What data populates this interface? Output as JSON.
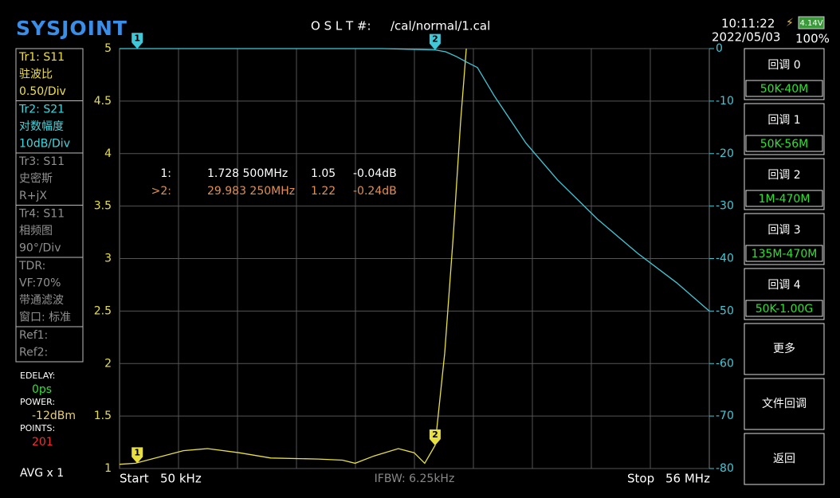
{
  "header": {
    "logo": "SYSJOINT",
    "cal_label": "O S L T #:",
    "cal_file": "/cal/normal/1.cal",
    "time": "10:11:22",
    "battery_voltage": "4.14V",
    "date": "2022/05/03",
    "battery_percent": "100%"
  },
  "traces": [
    {
      "lines": [
        "Tr1:  S11",
        "驻波比",
        "0.50/Div"
      ],
      "color": "#f0e040"
    },
    {
      "lines": [
        "Tr2:  S21",
        "对数幅度",
        "10dB/Div"
      ],
      "color": "#40d8e0"
    },
    {
      "lines": [
        "Tr3:  S11",
        "史密斯",
        "R+jX"
      ],
      "color": "#909090"
    },
    {
      "lines": [
        "Tr4:  S11",
        "相频图",
        "90°/Div"
      ],
      "color": "#909090"
    },
    {
      "lines": [
        "TDR:",
        "VF:70%",
        "带通滤波",
        "窗口: 标准"
      ],
      "color": "#909090"
    },
    {
      "lines": [
        "Ref1:",
        "Ref2:"
      ],
      "color": "#909090"
    }
  ],
  "status": [
    {
      "label": "EDELAY:",
      "value": "0ps",
      "color": "#30e030"
    },
    {
      "label": "POWER:",
      "value": "-12dBm",
      "color": "#e8d070"
    },
    {
      "label": "POINTS:",
      "value": "201",
      "color": "#f03030"
    }
  ],
  "avg": "AVG x 1",
  "buttons": [
    {
      "label": "回调 0",
      "sub": "50K-40M"
    },
    {
      "label": "回调 1",
      "sub": "50K-56M"
    },
    {
      "label": "回调 2",
      "sub": "1M-470M"
    },
    {
      "label": "回调 3",
      "sub": "135M-470M"
    },
    {
      "label": "回调 4",
      "sub": "50K-1.00G"
    },
    {
      "label": "更多"
    },
    {
      "label": "文件回调"
    },
    {
      "label": "返回"
    }
  ],
  "chart_data": {
    "type": "line",
    "xlim": [
      0.05,
      56
    ],
    "ylim": [
      1,
      5
    ],
    "yticks": [
      1,
      1.5,
      2,
      2.5,
      3,
      3.5,
      4,
      4.5,
      5
    ],
    "y2lim": [
      -80,
      0
    ],
    "y2ticks": [
      0,
      -10,
      -20,
      -30,
      -40,
      -50,
      -60,
      -70,
      -80
    ],
    "grid": true,
    "start_label": "Start",
    "start_value": "50 kHz",
    "stop_label": "Stop",
    "stop_value": "56 MHz",
    "ifbw": "IFBW: 6.25kHz",
    "series": [
      {
        "color": "#e8e040",
        "axis": "y",
        "x": [
          0.05,
          1.56,
          6.1,
          8.4,
          11.4,
          14.4,
          18.9,
          21.2,
          22.4,
          24.2,
          26.5,
          28,
          29,
          29.98,
          30.9,
          31.7,
          32.4,
          32.95
        ],
        "values": [
          1.04,
          1.05,
          1.17,
          1.19,
          1.15,
          1.1,
          1.09,
          1.08,
          1.05,
          1.12,
          1.19,
          1.15,
          1.05,
          1.22,
          2.1,
          3.2,
          4.3,
          5
        ]
      },
      {
        "color": "#40c8d8",
        "axis": "y2",
        "x": [
          0.05,
          5,
          10,
          15,
          20,
          25,
          29.98,
          31,
          32,
          33,
          34,
          35.6,
          38.6,
          41.6,
          45.4,
          49.2,
          52.9,
          56
        ],
        "values": [
          0,
          0,
          0,
          0,
          0,
          0,
          -0.24,
          -0.6,
          -1.5,
          -2.6,
          -3.6,
          -9,
          -18,
          -25,
          -32.5,
          -39,
          -44.6,
          -50
        ]
      }
    ],
    "markers": [
      {
        "label": "1",
        "x": 1.7285,
        "y": 1.05,
        "y2": -0.04
      },
      {
        "label": "2",
        "x": 29.98325,
        "y": 1.22,
        "y2": -0.24
      }
    ],
    "readout": [
      {
        "cells": [
          "1:",
          "1.728 500MHz",
          "1.05",
          "-0.04dB"
        ],
        "color": "#ffffff"
      },
      {
        "cells": [
          ">2:",
          "29.983 250MHz",
          "1.22",
          "-0.24dB"
        ],
        "color": "#e09050"
      }
    ]
  }
}
